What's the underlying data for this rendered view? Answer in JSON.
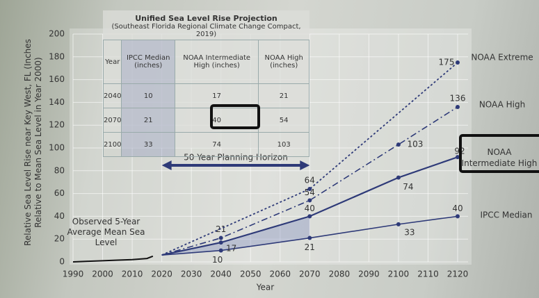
{
  "chart_data": {
    "type": "line",
    "y_label": "Relative Sea Level Rise near Key West, FL (Inches Relative to Mean Sea Level in Year 2000)",
    "x_label": "Year",
    "annotation": "50 Year Planning Horizon",
    "xlim": [
      1990,
      2120
    ],
    "xticks": [
      1990,
      2000,
      2010,
      2020,
      2030,
      2040,
      2050,
      2060,
      2070,
      2080,
      2090,
      2100,
      2110,
      2120
    ],
    "ylim": [
      0,
      200
    ],
    "yticks": [
      0,
      20,
      40,
      60,
      80,
      100,
      120,
      140,
      160,
      180,
      200
    ],
    "grid": true,
    "series": [
      {
        "name": "Observed 5-Year Average Mean Sea Level",
        "color": "#111111",
        "x": [
          1990,
          1995,
          2000,
          2005,
          2010,
          2015,
          2017
        ],
        "values": [
          0,
          0.5,
          1,
          1.5,
          2,
          3,
          5
        ]
      },
      {
        "name": "IPCC Median",
        "color": "#2e3a78",
        "x": [
          2020,
          2040,
          2070,
          2100,
          2120
        ],
        "values": [
          6,
          10,
          21,
          33,
          40
        ]
      },
      {
        "name": "NOAA Intermediate High",
        "color": "#2e3a78",
        "x": [
          2020,
          2040,
          2070,
          2100,
          2120
        ],
        "values": [
          6,
          17,
          40,
          74,
          92
        ]
      },
      {
        "name": "NOAA High",
        "color": "#2e3a78",
        "x": [
          2020,
          2040,
          2070,
          2100,
          2120
        ],
        "values": [
          6,
          21,
          54,
          103,
          136
        ]
      },
      {
        "name": "NOAA Extreme",
        "color": "#2e3a78",
        "x": [
          2020,
          2070,
          2120
        ],
        "values": [
          6,
          64,
          175
        ]
      }
    ],
    "table": {
      "title": "Unified Sea Level Rise Projection",
      "subtitle": "(Southeast Florida Regional Climate Change Compact, 2019)",
      "header": [
        "Year",
        "IPCC Median (inches)",
        "NOAA Intermediate High (inches)",
        "NOAA High (inches)"
      ],
      "rows": [
        [
          2040,
          10,
          17,
          21
        ],
        [
          2070,
          21,
          40,
          54
        ],
        [
          2100,
          33,
          74,
          103
        ]
      ]
    }
  }
}
